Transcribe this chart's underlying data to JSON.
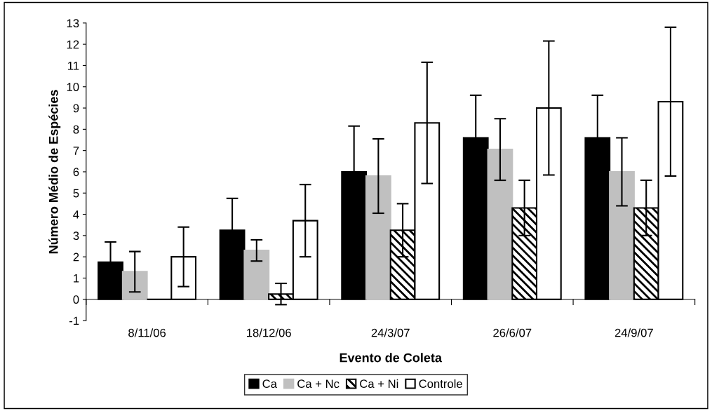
{
  "chart_data": {
    "type": "bar",
    "xlabel": "Evento de Coleta",
    "ylabel": "Número Médio de Espécies",
    "categories": [
      "8/11/06",
      "18/12/06",
      "24/3/07",
      "26/6/07",
      "24/9/07"
    ],
    "series": [
      {
        "name": "Ca",
        "color": "#000000",
        "values": [
          1.75,
          3.25,
          6.0,
          7.6,
          7.6
        ],
        "errors": [
          0.95,
          1.5,
          2.15,
          2.0,
          2.0
        ]
      },
      {
        "name": "Ca + Nc",
        "color": "#c0c0c0",
        "values": [
          1.3,
          2.3,
          5.8,
          7.05,
          6.0
        ],
        "errors": [
          0.95,
          0.5,
          1.75,
          1.45,
          1.6
        ]
      },
      {
        "name": "Ca + Ni",
        "color": "#000000",
        "values": [
          0.0,
          0.25,
          3.25,
          4.3,
          4.3
        ],
        "errors": [
          null,
          0.5,
          1.25,
          1.3,
          1.3
        ]
      },
      {
        "name": "Controle",
        "color": "#ffffff",
        "values": [
          2.0,
          3.7,
          8.3,
          9.0,
          9.3
        ],
        "errors": [
          1.4,
          1.7,
          2.85,
          3.15,
          3.5
        ]
      }
    ],
    "ylim": [
      -1,
      13
    ],
    "yticks": [
      -1,
      0,
      1,
      2,
      3,
      4,
      5,
      6,
      7,
      8,
      9,
      10,
      11,
      12,
      13
    ],
    "grid": false,
    "legend": "bottom"
  }
}
